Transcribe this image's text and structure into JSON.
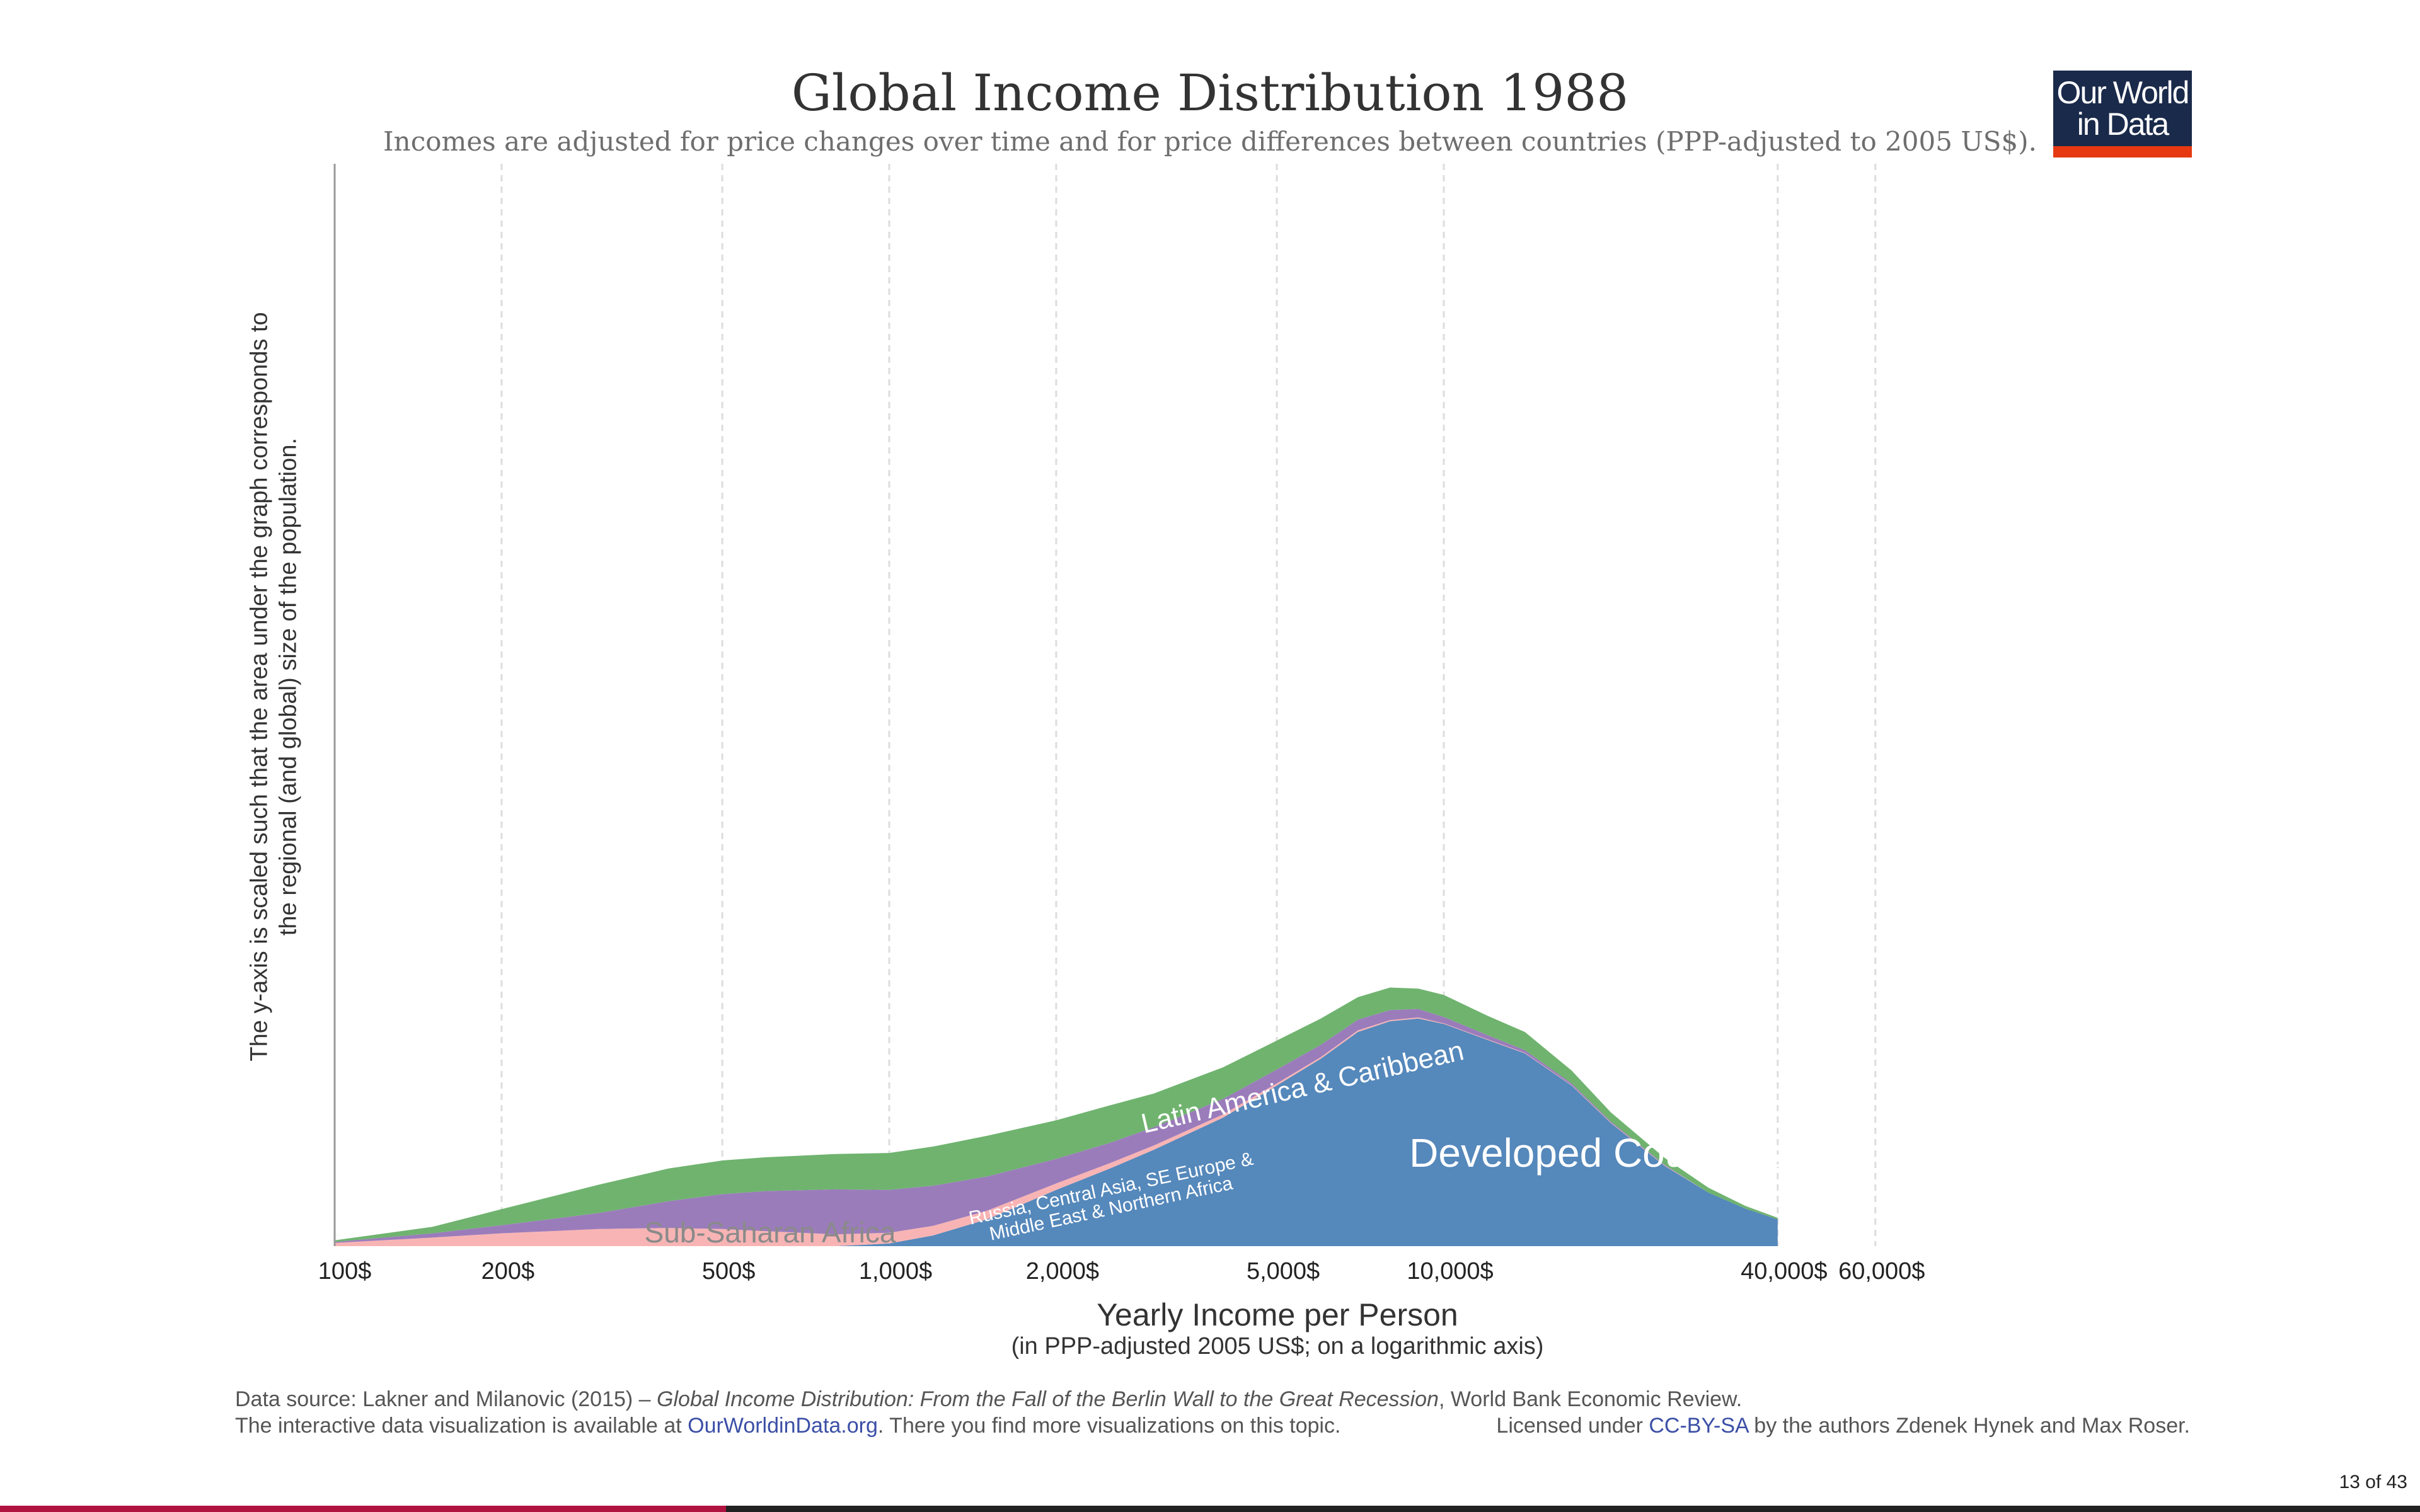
{
  "chart_data": {
    "type": "area",
    "stacked": true,
    "title": "Global Income Distribution 1988",
    "subtitle": "Incomes are adjusted for price changes over time and for price differences between countries (PPP-adjusted to 2005 US$).",
    "xlabel": "Yearly Income per Person",
    "xlabel_note": "(in PPP-adjusted 2005 US$; on a logarithmic axis)",
    "ylabel": "The y-axis is scaled such that the area under the graph corresponds to the regional (and global) size of the population.",
    "x_scale": "log",
    "xlim": [
      100,
      70000
    ],
    "ylim": [
      0,
      100
    ],
    "grid": "vertical dashed",
    "x_ticks": [
      {
        "value": 100,
        "label": "100$"
      },
      {
        "value": 200,
        "label": "200$"
      },
      {
        "value": 500,
        "label": "500$"
      },
      {
        "value": 1000,
        "label": "1,000$"
      },
      {
        "value": 2000,
        "label": "2,000$"
      },
      {
        "value": 5000,
        "label": "5,000$"
      },
      {
        "value": 10000,
        "label": "10,000$"
      },
      {
        "value": 40000,
        "label": "40,000$"
      },
      {
        "value": 60000,
        "label": "60,000$"
      }
    ],
    "x": [
      100,
      150,
      200,
      300,
      400,
      500,
      600,
      800,
      1000,
      1200,
      1500,
      2000,
      2500,
      3000,
      4000,
      5000,
      6000,
      7000,
      8000,
      9000,
      10000,
      12000,
      14000,
      17000,
      20000,
      25000,
      30000,
      35000,
      40000
    ],
    "series": [
      {
        "name": "Developed Countries",
        "color": "#5588bb",
        "values": [
          0,
          0,
          0,
          0,
          0,
          0,
          0,
          0,
          0.5,
          2,
          5,
          10.5,
          14.5,
          18,
          24,
          30,
          35,
          40,
          42,
          42.5,
          41.5,
          38.5,
          36,
          30,
          23,
          15,
          10,
          7,
          5
        ]
      },
      {
        "name": "Sub-Saharan Africa",
        "color": "#f8b4b4",
        "values": [
          0.6,
          1.6,
          2.4,
          3.2,
          3.4,
          3.2,
          2.8,
          2.2,
          2.0,
          1.8,
          1.6,
          1.2,
          1.0,
          0.8,
          0.6,
          0.4,
          0.3,
          0.3,
          0.2,
          0.2,
          0.1,
          0.1,
          0.1,
          0.1,
          0.1,
          0.1,
          0,
          0,
          0
        ]
      },
      {
        "name": "Russia, Central Asia, SE Europe & Middle East & Northern Africa",
        "color": "#9b7cbb",
        "values": [
          0.2,
          0.8,
          1.5,
          3,
          5,
          6.5,
          7.5,
          8.4,
          8,
          7.5,
          6.4,
          4.6,
          3.8,
          3.4,
          2.9,
          2.6,
          2.3,
          2.0,
          1.9,
          1.6,
          1.2,
          0.8,
          0.5,
          0.3,
          0.2,
          0.1,
          0,
          0,
          0
        ]
      },
      {
        "name": "Latin America & Caribbean",
        "color": "#6fb36f",
        "values": [
          0.3,
          1.2,
          3,
          5.3,
          6.1,
          6.3,
          6.3,
          6.6,
          6.9,
          7.3,
          7.6,
          7.2,
          7.0,
          6.3,
          5.9,
          5.4,
          4.9,
          4.2,
          4.2,
          3.8,
          4.1,
          3.6,
          3.4,
          2.4,
          1.7,
          1.3,
          0.9,
          0.5,
          0.3
        ]
      }
    ],
    "area_labels": [
      {
        "text": "Developed Countries",
        "color": "#ffffff"
      },
      {
        "text": "Latin America & Caribbean",
        "color": "#ffffff"
      },
      {
        "text": "Russia, Central Asia, SE Europe &",
        "color": "#ffffff"
      },
      {
        "text": "Middle East & Northern Africa",
        "color": "#ffffff"
      },
      {
        "text": "Sub-Saharan Africa",
        "color": "#8a8a8a"
      }
    ]
  },
  "logo": {
    "line1": "Our World",
    "line2": "in Data"
  },
  "footer": {
    "source_prefix": "Data source: Lakner and Milanovic (2015) – ",
    "source_title": "Global Income Distribution: From the Fall of the Berlin Wall to the Great Recession",
    "source_suffix": ", World Bank Economic Review.",
    "interactive_prefix": "The interactive data visualization is available at ",
    "interactive_link": "OurWorldinData.org",
    "interactive_suffix": ". There you find more visualizations on this topic.",
    "license_prefix": "Licensed under ",
    "license_link": "CC-BY-SA",
    "license_suffix": " by the authors Zdenek Hynek and Max Roser."
  },
  "page_number": "13 of 43",
  "colors": {
    "accent": "#b01340",
    "logo_bg": "#1a2a4a",
    "logo_bar": "#e63912"
  }
}
